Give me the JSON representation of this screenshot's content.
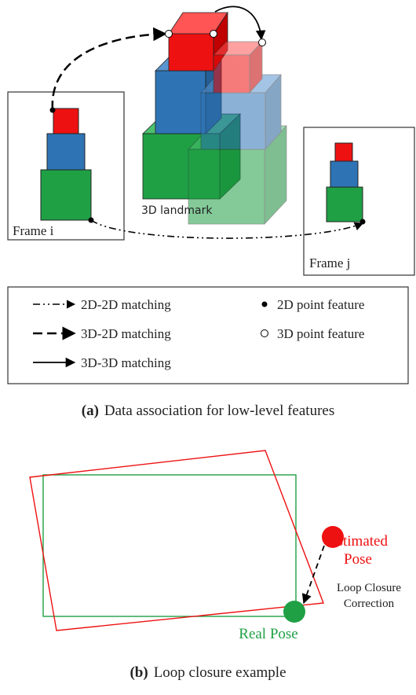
{
  "panel_a": {
    "frame_i_label": "Frame i",
    "frame_j_label": "Frame j",
    "landmark_label": "3D landmark",
    "legend": {
      "matching": [
        "2D-2D matching",
        "3D-2D matching",
        "3D-3D matching"
      ],
      "features": [
        "2D point feature",
        "3D point feature"
      ]
    },
    "caption": {
      "label": "(a)",
      "text": "Data association for low-level features"
    }
  },
  "panel_b": {
    "estimated_pose": [
      "Estimated",
      "Pose"
    ],
    "correction": [
      "Loop Closure",
      "Correction"
    ],
    "real_pose": "Real Pose",
    "caption": {
      "label": "(b)",
      "text": "Loop closure example"
    }
  }
}
